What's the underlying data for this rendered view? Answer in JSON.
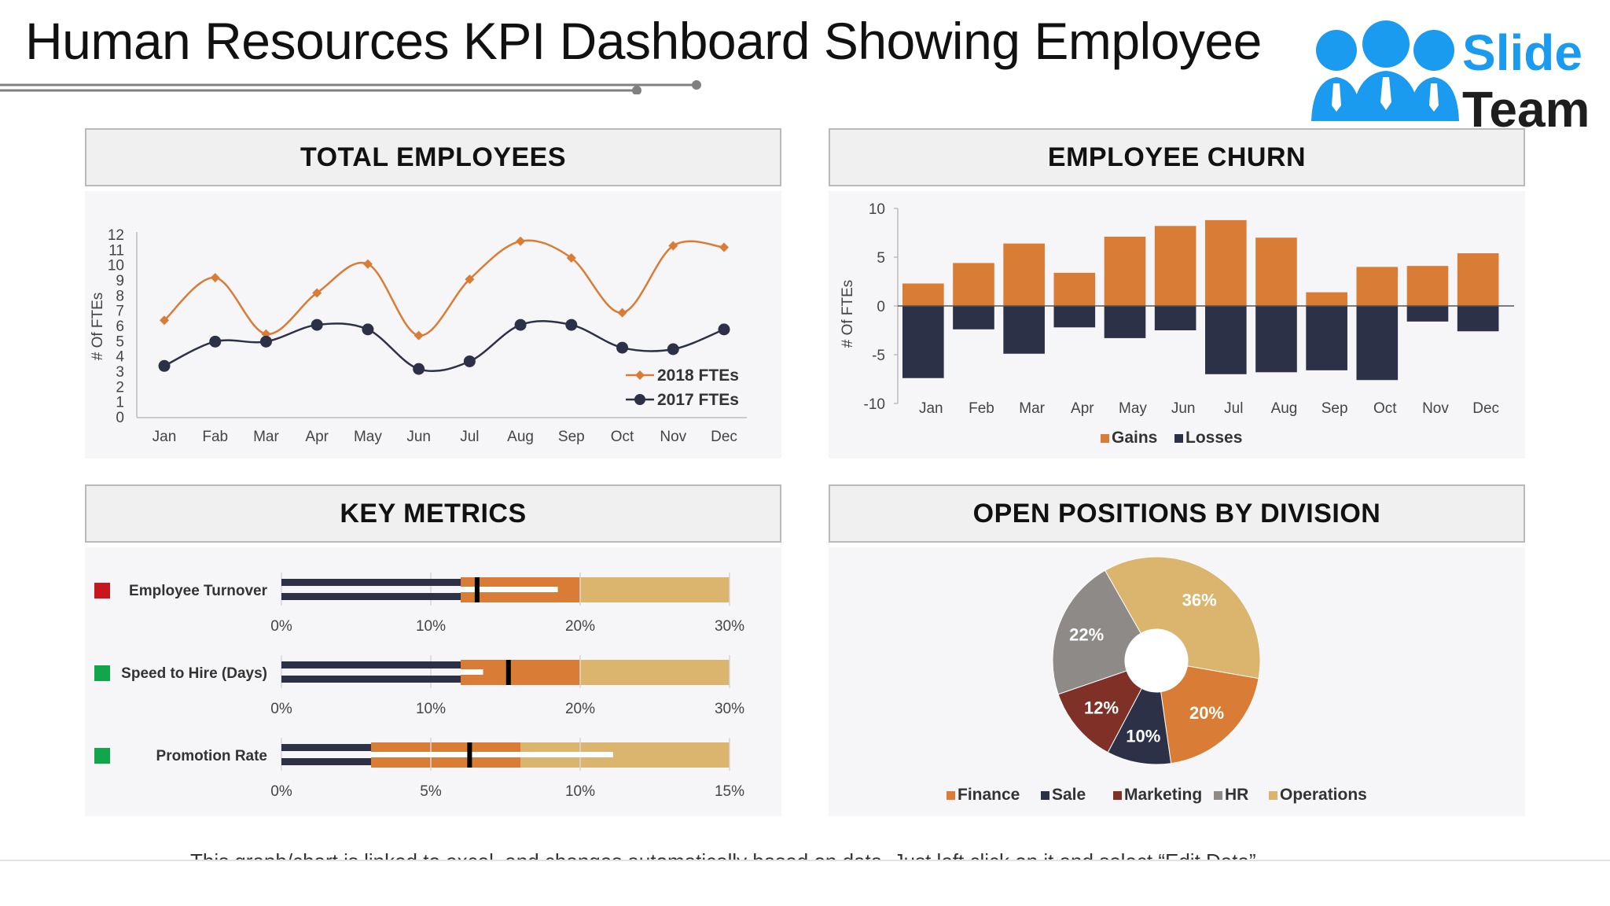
{
  "header": {
    "title": "Human Resources KPI Dashboard Showing Employee",
    "logo_top": "Slide",
    "logo_bottom": "Team"
  },
  "panels": {
    "total_employees": "TOTAL EMPLOYEES",
    "employee_churn": "EMPLOYEE CHURN",
    "key_metrics": "KEY METRICS",
    "open_positions": "OPEN POSITIONS BY DIVISION"
  },
  "footnote": "This graph/chart is linked to excel, and changes automatically based on data. Just left click on it and select “Edit Data”.",
  "colors": {
    "orange": "#d97c35",
    "navy": "#2c3147",
    "tan": "#dbb56e",
    "brown": "#7f3128",
    "gray": "#8e8a88",
    "blue": "#1a9bf0"
  },
  "chart_data": [
    {
      "type": "line",
      "ylabel": "# Of  FTEs",
      "ylim": [
        0,
        12
      ],
      "yticks": [
        "0",
        "1",
        "2",
        "3",
        "4",
        "5",
        "6",
        "7",
        "8",
        "9",
        "10",
        "11",
        "12"
      ],
      "categories": [
        "Jan",
        "Fab",
        "Mar",
        "Apr",
        "May",
        "Jun",
        "Jul",
        "Aug",
        "Sep",
        "Oct",
        "Nov",
        "Dec"
      ],
      "series": [
        {
          "name": "2018 FTEs",
          "values": [
            6.4,
            9.2,
            5.5,
            8.2,
            10.1,
            5.4,
            9.1,
            11.6,
            10.5,
            6.9,
            11.3,
            11.2
          ]
        },
        {
          "name": "2017 FTEs",
          "values": [
            3.4,
            5.0,
            5.0,
            6.1,
            5.8,
            3.2,
            3.7,
            6.1,
            6.1,
            4.6,
            4.5,
            5.8
          ]
        }
      ],
      "legend": "bottom-right"
    },
    {
      "type": "bar",
      "ylabel": "# Of  FTEs",
      "ylim": [
        -10,
        10
      ],
      "yticks": [
        "10",
        "5",
        "0",
        "-5",
        "-10"
      ],
      "categories": [
        "Jan",
        "Feb",
        "Mar",
        "Apr",
        "May",
        "Jun",
        "Jul",
        "Aug",
        "Sep",
        "Oct",
        "Nov",
        "Dec"
      ],
      "series": [
        {
          "name": "Gains",
          "values": [
            2.3,
            4.4,
            6.4,
            3.4,
            7.1,
            8.2,
            8.8,
            7.0,
            1.4,
            4.0,
            4.1,
            5.4
          ]
        },
        {
          "name": "Losses",
          "values": [
            -7.4,
            -2.4,
            -4.9,
            -2.2,
            -3.3,
            -2.5,
            -7.0,
            -6.8,
            -6.6,
            -7.6,
            -1.6,
            -2.6
          ]
        }
      ],
      "legend": "bottom-center"
    },
    {
      "type": "bullet",
      "rows": [
        {
          "label": "Employee Turnover",
          "status": "#c8161d",
          "ticks": [
            "0%",
            "10%",
            "20%",
            "30%"
          ],
          "max": 30,
          "bands": [
            12,
            20,
            30
          ],
          "bar": 12,
          "target": 13.1,
          "comparative": 18.5
        },
        {
          "label": "Speed to Hire (Days)",
          "status": "#12a64b",
          "ticks": [
            "0%",
            "10%",
            "20%",
            "30%"
          ],
          "max": 30,
          "bands": [
            12,
            20,
            30
          ],
          "bar": 12,
          "target": 15.2,
          "comparative": 13.5
        },
        {
          "label": "Promotion Rate",
          "status": "#12a64b",
          "ticks": [
            "0%",
            "5%",
            "10%",
            "15%"
          ],
          "max": 15,
          "bands": [
            3,
            8,
            15
          ],
          "bar": 3,
          "target": 6.3,
          "comparative": 11.1
        }
      ]
    },
    {
      "type": "pie",
      "slices": [
        {
          "name": "Operations",
          "value": 36,
          "label": "36%",
          "color": "#dbb56e"
        },
        {
          "name": "Finance",
          "value": 20,
          "label": "20%",
          "color": "#d97c35"
        },
        {
          "name": "Sale",
          "value": 10,
          "label": "10%",
          "color": "#2c3147"
        },
        {
          "name": "Marketing",
          "value": 12,
          "label": "12%",
          "color": "#7f3128"
        },
        {
          "name": "HR",
          "value": 22,
          "label": "22%",
          "color": "#8e8a88"
        }
      ],
      "legend": [
        "Finance",
        "Sale",
        "Marketing",
        "HR",
        "Operations"
      ]
    }
  ]
}
